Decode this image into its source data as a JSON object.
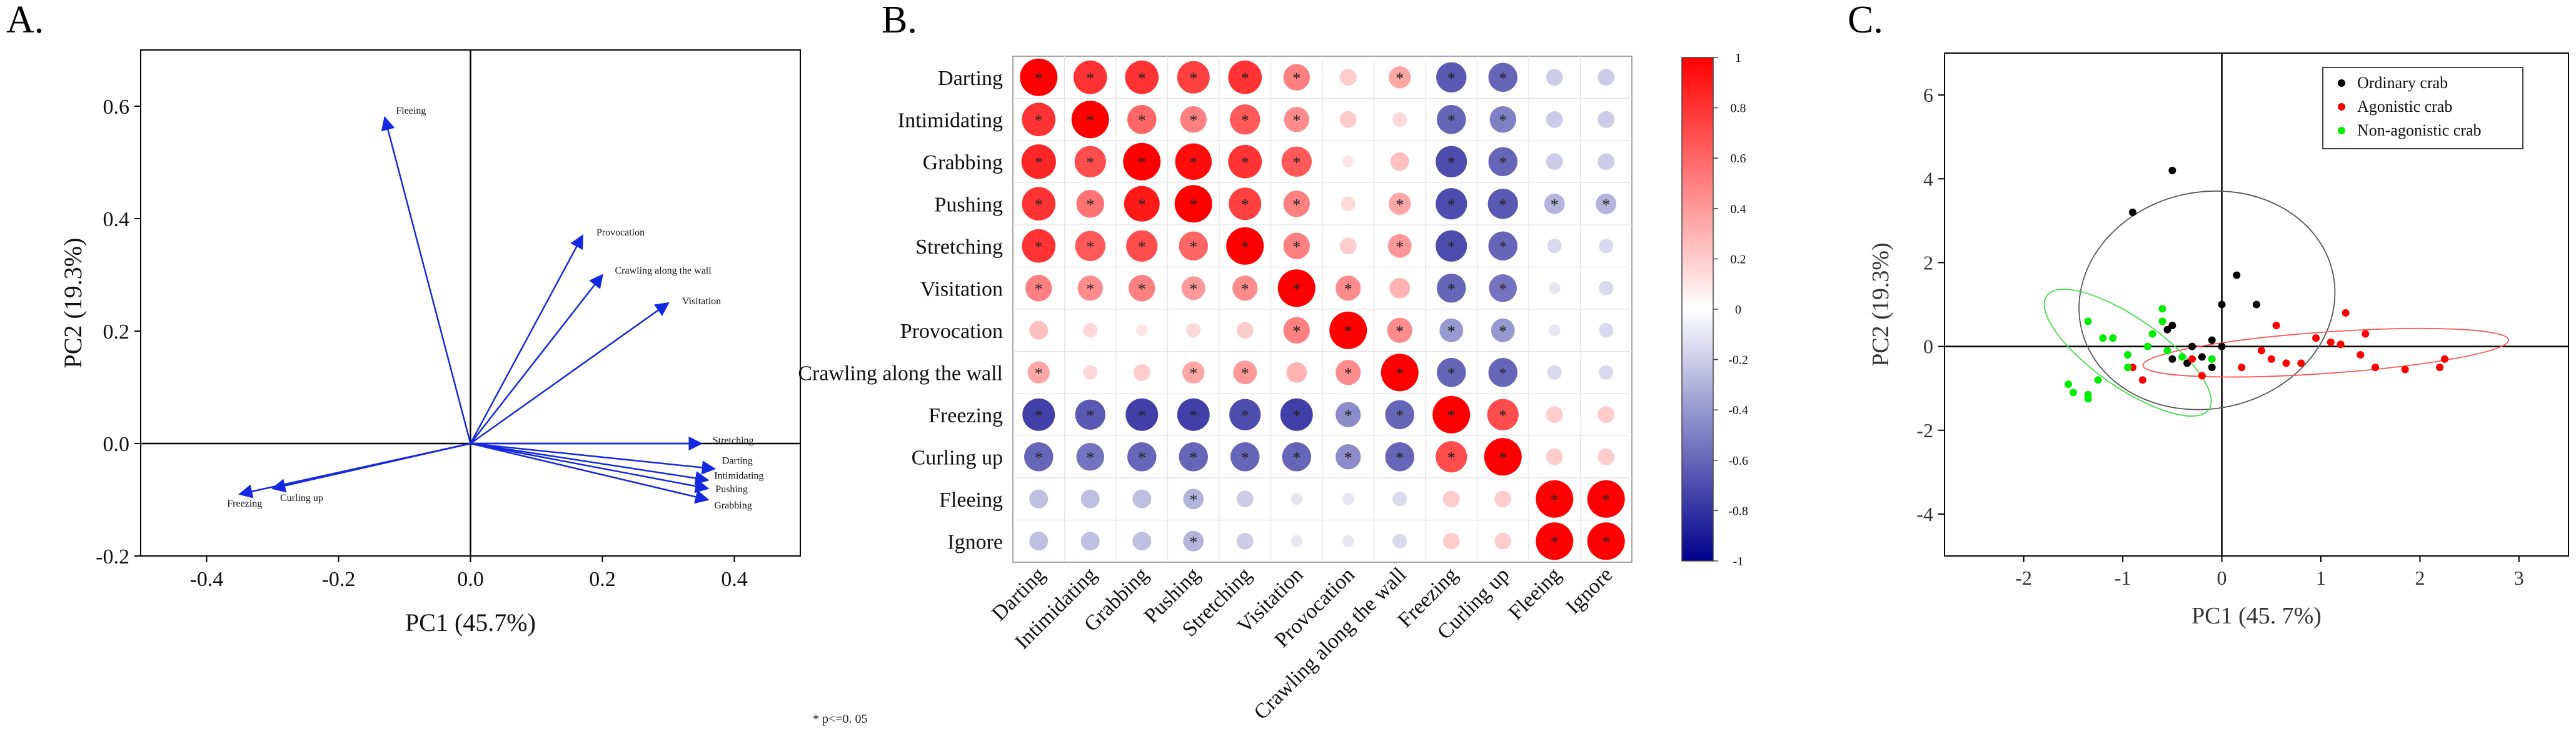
{
  "panel_labels": [
    "A.",
    "B.",
    "C."
  ],
  "footnote": "* p<=0. 05",
  "colors": {
    "arrow": "#1428e0",
    "positive": "#ff0000",
    "negative": "#00008b",
    "ordinary": "#000000",
    "agonistic": "#ff0000",
    "nonagonistic": "#00ee00",
    "ellipse_ordinary": "#555555",
    "ellipse_agonistic": "#ff5555",
    "ellipse_nonagonistic": "#44dd44"
  },
  "chart_data": [
    {
      "type": "biplot",
      "panel": "A.",
      "xlabel": "PC1 (45.7%)",
      "ylabel": "PC2 (19.3%)",
      "xlim": [
        -0.5,
        0.5
      ],
      "ylim": [
        -0.2,
        0.7
      ],
      "xticks": [
        -0.4,
        -0.2,
        0.0,
        0.2,
        0.4
      ],
      "yticks": [
        -0.2,
        0.0,
        0.2,
        0.4,
        0.6
      ],
      "xtick_labels": [
        "-0.4",
        "-0.2",
        "0.0",
        "0.2",
        "0.4"
      ],
      "ytick_labels": [
        "-0.2",
        "0.0",
        "0.2",
        "0.4",
        "0.6"
      ],
      "grid": false,
      "vectors": [
        {
          "label": "Fleeing",
          "x": -0.13,
          "y": 0.58
        },
        {
          "label": "Provocation",
          "x": 0.17,
          "y": 0.37
        },
        {
          "label": "Crawling along the wall",
          "x": 0.2,
          "y": 0.3
        },
        {
          "label": "Visitation",
          "x": 0.3,
          "y": 0.25
        },
        {
          "label": "Stretching",
          "x": 0.35,
          "y": 0.0
        },
        {
          "label": "Darting",
          "x": 0.37,
          "y": -0.045
        },
        {
          "label": "Intimidating",
          "x": 0.36,
          "y": -0.065
        },
        {
          "label": "Pushing",
          "x": 0.36,
          "y": -0.08
        },
        {
          "label": "Grabbing",
          "x": 0.36,
          "y": -0.1
        },
        {
          "label": "Freezing",
          "x": -0.35,
          "y": -0.09
        },
        {
          "label": "Curling up",
          "x": -0.3,
          "y": -0.08
        }
      ]
    },
    {
      "type": "heatmap",
      "panel": "B.",
      "labels": [
        "Darting",
        "Intimidating",
        "Grabbing",
        "Pushing",
        "Stretching",
        "Visitation",
        "Provocation",
        "Crawling along the wall",
        "Freezing",
        "Curling up",
        "Fleeing",
        "Ignore"
      ],
      "matrix": [
        [
          1.0,
          0.8,
          0.8,
          0.75,
          0.8,
          0.5,
          0.2,
          0.35,
          -0.65,
          -0.6,
          -0.2,
          -0.2
        ],
        [
          0.8,
          1.0,
          0.6,
          0.5,
          0.65,
          0.45,
          0.2,
          0.15,
          -0.6,
          -0.5,
          -0.2,
          -0.2
        ],
        [
          0.85,
          0.7,
          1.0,
          0.95,
          0.8,
          0.65,
          0.1,
          0.25,
          -0.7,
          -0.6,
          -0.2,
          -0.2
        ],
        [
          0.8,
          0.55,
          0.9,
          1.0,
          0.75,
          0.5,
          0.15,
          0.35,
          -0.7,
          -0.65,
          -0.3,
          -0.3
        ],
        [
          0.8,
          0.65,
          0.7,
          0.6,
          1.0,
          0.5,
          0.2,
          0.4,
          -0.7,
          -0.6,
          -0.15,
          -0.15
        ],
        [
          0.5,
          0.45,
          0.5,
          0.4,
          0.45,
          1.0,
          0.45,
          0.3,
          -0.6,
          -0.55,
          -0.1,
          -0.15
        ],
        [
          0.25,
          0.15,
          0.1,
          0.15,
          0.2,
          0.5,
          1.0,
          0.45,
          -0.4,
          -0.4,
          -0.1,
          -0.15
        ],
        [
          0.35,
          0.15,
          0.2,
          0.35,
          0.4,
          0.3,
          0.45,
          1.0,
          -0.6,
          -0.6,
          -0.15,
          -0.15
        ],
        [
          -0.75,
          -0.65,
          -0.75,
          -0.75,
          -0.7,
          -0.75,
          -0.45,
          -0.6,
          1.0,
          0.7,
          0.2,
          0.2
        ],
        [
          -0.6,
          -0.55,
          -0.6,
          -0.6,
          -0.6,
          -0.6,
          -0.45,
          -0.6,
          0.7,
          1.0,
          0.2,
          0.2
        ],
        [
          -0.25,
          -0.25,
          -0.25,
          -0.3,
          -0.2,
          -0.1,
          -0.1,
          -0.15,
          0.2,
          0.2,
          1.0,
          1.0
        ],
        [
          -0.25,
          -0.25,
          -0.25,
          -0.3,
          -0.2,
          -0.1,
          -0.1,
          -0.15,
          0.2,
          0.2,
          1.0,
          1.0
        ]
      ],
      "significant": [
        [
          1,
          1,
          1,
          1,
          1,
          1,
          0,
          1,
          1,
          1,
          0,
          0
        ],
        [
          1,
          1,
          1,
          1,
          1,
          1,
          0,
          0,
          1,
          1,
          0,
          0
        ],
        [
          1,
          1,
          1,
          1,
          1,
          1,
          0,
          0,
          1,
          1,
          0,
          0
        ],
        [
          1,
          1,
          1,
          1,
          1,
          1,
          0,
          1,
          1,
          1,
          1,
          1
        ],
        [
          1,
          1,
          1,
          1,
          1,
          1,
          0,
          1,
          1,
          1,
          0,
          0
        ],
        [
          1,
          1,
          1,
          1,
          1,
          1,
          1,
          0,
          1,
          1,
          0,
          0
        ],
        [
          0,
          0,
          0,
          0,
          0,
          1,
          1,
          1,
          1,
          1,
          0,
          0
        ],
        [
          1,
          0,
          0,
          1,
          1,
          0,
          1,
          1,
          1,
          1,
          0,
          0
        ],
        [
          1,
          1,
          1,
          1,
          1,
          1,
          1,
          1,
          1,
          1,
          0,
          0
        ],
        [
          1,
          1,
          1,
          1,
          1,
          1,
          1,
          1,
          1,
          1,
          0,
          0
        ],
        [
          0,
          0,
          0,
          1,
          0,
          0,
          0,
          0,
          0,
          0,
          1,
          1
        ],
        [
          0,
          0,
          0,
          1,
          0,
          0,
          0,
          0,
          0,
          0,
          1,
          1
        ]
      ],
      "colorbar_ticks": [
        1,
        0.8,
        0.6,
        0.4,
        0.2,
        0,
        -0.2,
        -0.4,
        -0.6,
        -0.8,
        -1
      ],
      "colorbar_tick_labels": [
        "1",
        "0.8",
        "0.6",
        "0.4",
        "0.2",
        "0",
        "-0.2",
        "-0.4",
        "-0.6",
        "-0.8",
        "-1"
      ],
      "vmin": -1,
      "vmax": 1
    },
    {
      "type": "scatter",
      "panel": "C.",
      "xlabel": "PC1  (45. 7%)",
      "ylabel": "PC2 (19.3%)",
      "xlim": [
        -2.8,
        3.5
      ],
      "ylim": [
        -5.0,
        7.0
      ],
      "xticks": [
        -2,
        -1,
        0,
        1,
        2,
        3
      ],
      "yticks": [
        -4,
        -2,
        0,
        2,
        4,
        6
      ],
      "xtick_labels": [
        "-2",
        "-1",
        "0",
        "1",
        "2",
        "3"
      ],
      "ytick_labels": [
        "-4",
        "-2",
        "0",
        "2",
        "4",
        "6"
      ],
      "legend_position": "top-right",
      "series": [
        {
          "name": "Ordinary crab",
          "points": [
            [
              -0.5,
              4.2
            ],
            [
              -0.9,
              3.2
            ],
            [
              0.15,
              1.7
            ],
            [
              0.35,
              1.0
            ],
            [
              0.0,
              1.0
            ],
            [
              -0.5,
              0.5
            ],
            [
              -0.55,
              0.4
            ],
            [
              -0.3,
              0.0
            ],
            [
              -0.1,
              0.15
            ],
            [
              0.0,
              0.0
            ],
            [
              -0.2,
              -0.25
            ],
            [
              -0.5,
              -0.3
            ],
            [
              -0.35,
              -0.4
            ],
            [
              -0.1,
              -0.5
            ]
          ]
        },
        {
          "name": "Agonistic crab",
          "points": [
            [
              1.25,
              0.8
            ],
            [
              0.55,
              0.5
            ],
            [
              0.95,
              0.2
            ],
            [
              1.1,
              0.1
            ],
            [
              1.45,
              0.3
            ],
            [
              0.4,
              -0.1
            ],
            [
              0.5,
              -0.3
            ],
            [
              0.65,
              -0.4
            ],
            [
              0.8,
              -0.4
            ],
            [
              0.2,
              -0.5
            ],
            [
              1.2,
              0.05
            ],
            [
              1.4,
              -0.2
            ],
            [
              1.55,
              -0.5
            ],
            [
              1.85,
              -0.55
            ],
            [
              2.25,
              -0.3
            ],
            [
              2.2,
              -0.5
            ],
            [
              -0.3,
              -0.3
            ],
            [
              -0.2,
              -0.7
            ],
            [
              -0.8,
              -0.8
            ],
            [
              -0.9,
              -0.5
            ]
          ]
        },
        {
          "name": "Non-agonistic crab",
          "points": [
            [
              -0.6,
              0.9
            ],
            [
              -0.6,
              0.6
            ],
            [
              -1.35,
              0.6
            ],
            [
              -1.2,
              0.2
            ],
            [
              -1.1,
              0.2
            ],
            [
              -0.7,
              0.3
            ],
            [
              -0.75,
              0.0
            ],
            [
              -0.95,
              -0.2
            ],
            [
              -0.55,
              -0.1
            ],
            [
              -0.95,
              -0.5
            ],
            [
              -1.55,
              -0.9
            ],
            [
              -1.5,
              -1.1
            ],
            [
              -1.35,
              -1.15
            ],
            [
              -1.35,
              -1.25
            ],
            [
              -1.25,
              -0.8
            ],
            [
              -0.4,
              -0.25
            ],
            [
              -0.1,
              -0.3
            ]
          ]
        }
      ]
    }
  ]
}
